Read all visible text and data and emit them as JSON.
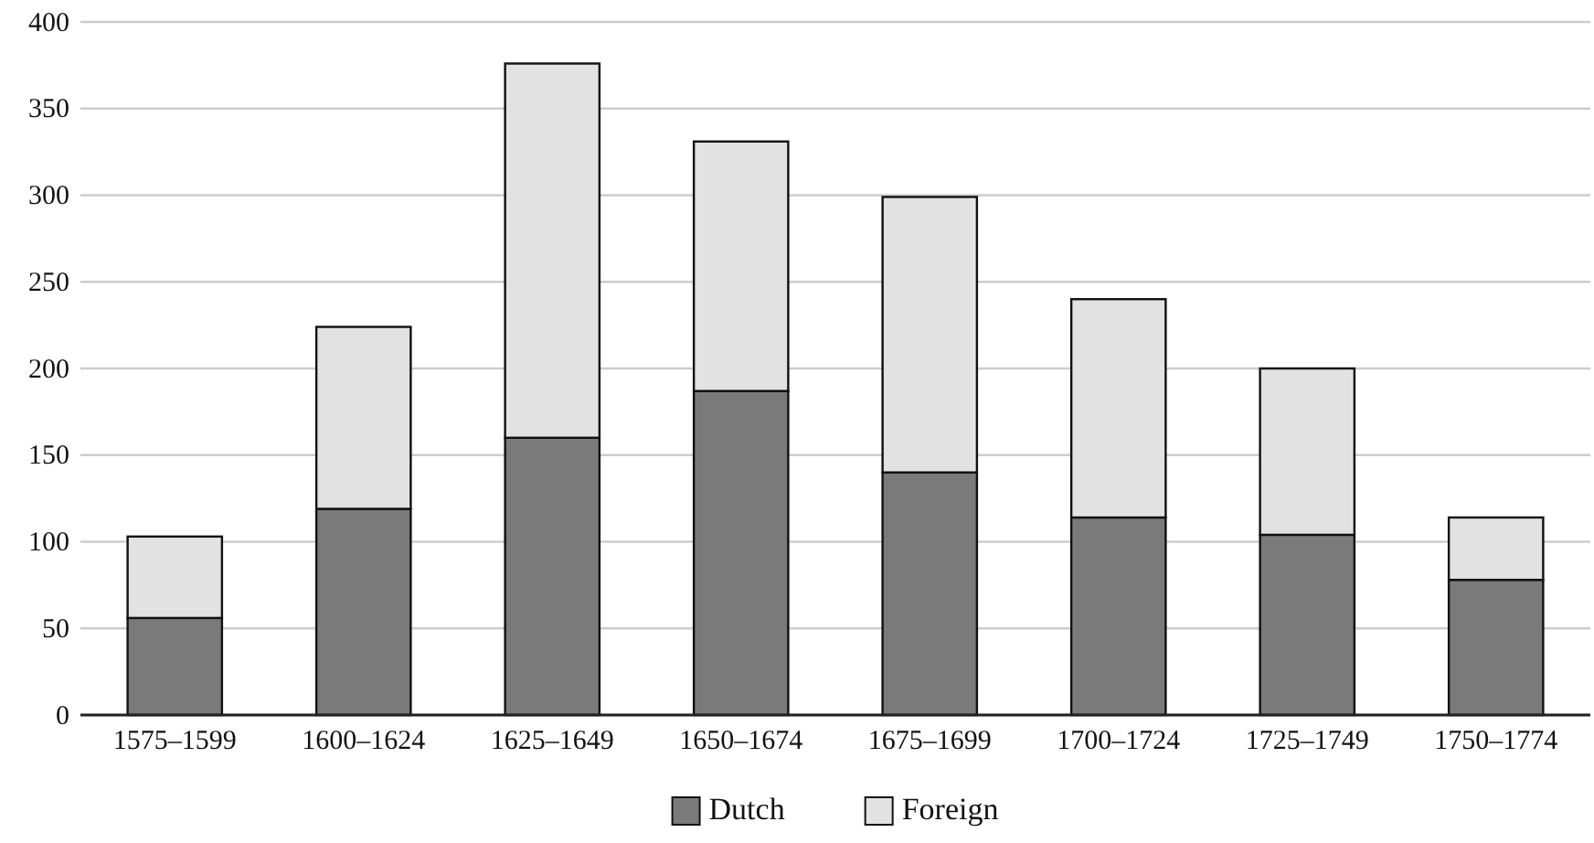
{
  "chart_data": {
    "type": "bar",
    "stacked": true,
    "categories": [
      "1575–1599",
      "1600–1624",
      "1625–1649",
      "1650–1674",
      "1675–1699",
      "1700–1724",
      "1725–1749",
      "1750–1774"
    ],
    "series": [
      {
        "name": "Dutch",
        "color": "#7a7a7a",
        "values": [
          56,
          119,
          160,
          187,
          140,
          114,
          104,
          78
        ]
      },
      {
        "name": "Foreign",
        "color": "#e2e2e2",
        "values": [
          47,
          105,
          216,
          144,
          159,
          126,
          96,
          36
        ]
      }
    ],
    "ylim": [
      0,
      400
    ],
    "yticks": [
      0,
      50,
      100,
      150,
      200,
      250,
      300,
      350,
      400
    ],
    "grid": "y",
    "legend": "bottom"
  }
}
